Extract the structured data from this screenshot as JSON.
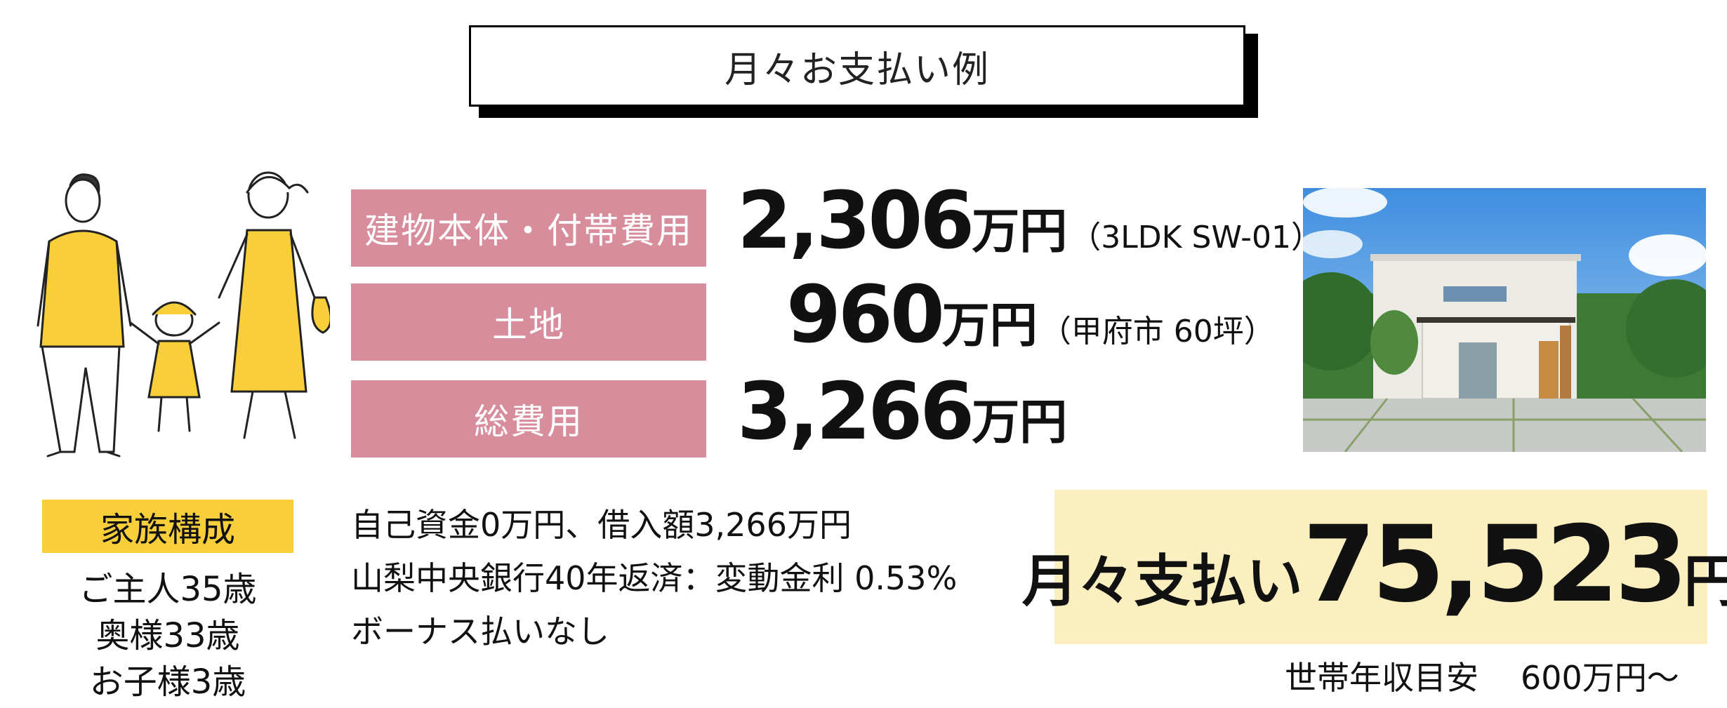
{
  "header": {
    "title": "月々お支払い例"
  },
  "rows": [
    {
      "label": "建物本体・付帯費用",
      "amount": "2,306",
      "unit": "万円",
      "note": "（3LDK  SW-01）"
    },
    {
      "label": "土地",
      "amount": "960",
      "unit": "万円",
      "note": "（甲府市 60坪）"
    },
    {
      "label": "総費用",
      "amount": "3,266",
      "unit": "万円",
      "note": ""
    }
  ],
  "family": {
    "label": "家族構成",
    "members": [
      "ご主人35歳",
      "奥様33歳",
      "お子様3歳"
    ]
  },
  "loan": {
    "lines": [
      "自己資金0万円、借入額3,266万円",
      "山梨中央銀行40年返済：変動金利 0.53%",
      "ボーナス払いなし"
    ]
  },
  "monthly": {
    "label": "月々支払い",
    "amount": "75,523",
    "unit": "円"
  },
  "income": {
    "label": "世帯年収目安",
    "value": "600万円～"
  },
  "colors": {
    "pink": "#d88d9c",
    "yellow": "#f8cf3a",
    "cream": "#fbefc0"
  }
}
